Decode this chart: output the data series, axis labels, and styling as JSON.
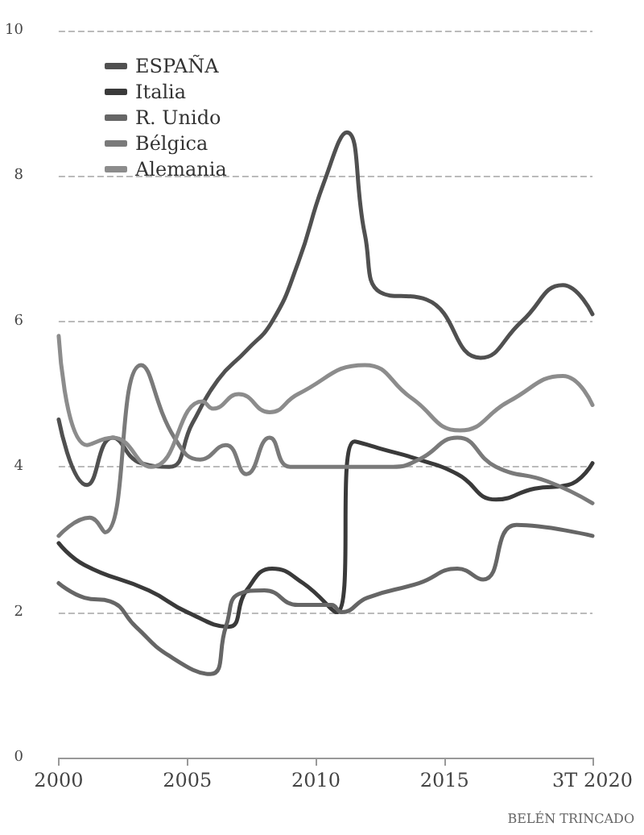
{
  "chart_data": {
    "type": "line",
    "annotations": [
      "BELÉN TRINCADO"
    ],
    "xlim": [
      2000,
      2020.75
    ],
    "xticks": [
      2000,
      2005,
      2010,
      2015,
      {
        "value": 2020.75,
        "label": "3T 2020"
      }
    ],
    "ylim": [
      0,
      10
    ],
    "yticks": [
      0,
      2,
      4,
      6,
      8,
      10
    ],
    "grid": "y",
    "legend": "top left",
    "marker": "none",
    "line_style": "solid",
    "series": [
      {
        "name": "ESPAÑA",
        "color": "#505050",
        "x": [
          2000,
          2001.1,
          2002.1,
          2003.2,
          2004.3,
          2005.2,
          2006.2,
          2007.3,
          2008.3,
          2009.3,
          2010.3,
          2011.2,
          2011.9,
          2012.5,
          2014.3,
          2016.4,
          2018,
          2019.6,
          2020.75
        ],
        "values": [
          4.65,
          3.75,
          4.4,
          4.05,
          4.0,
          4.6,
          5.2,
          5.6,
          6.0,
          6.8,
          7.9,
          8.6,
          7.2,
          6.4,
          6.3,
          5.5,
          6.0,
          6.5,
          6.1
        ]
      },
      {
        "name": "Italia",
        "color": "#3a3a3a",
        "x": [
          2000,
          2001,
          2003.5,
          2005,
          2006.6,
          2007.3,
          2008.3,
          2009.5,
          2010.8,
          2011.5,
          2012.5,
          2014,
          2015.5,
          2017,
          2018.5,
          2019.8,
          2020.75
        ],
        "values": [
          2.95,
          2.65,
          2.3,
          2.0,
          1.8,
          2.3,
          2.6,
          2.4,
          2.0,
          4.35,
          4.25,
          4.1,
          3.9,
          3.55,
          3.7,
          3.75,
          4.05
        ]
      },
      {
        "name": "R. Unido",
        "color": "#666666",
        "x": [
          2000,
          2001,
          2002,
          2003,
          2004.3,
          2005.9,
          2006.5,
          2007,
          2008,
          2009.3,
          2010.6,
          2011,
          2012,
          2014,
          2015.5,
          2016.5,
          2017.8,
          2020.75
        ],
        "values": [
          2.4,
          2.2,
          2.15,
          1.8,
          1.4,
          1.15,
          1.8,
          2.25,
          2.3,
          2.1,
          2.1,
          2.0,
          2.2,
          2.4,
          2.6,
          2.45,
          3.2,
          3.05
        ]
      },
      {
        "name": "Bélgica",
        "color": "#7a7a7a",
        "x": [
          2000,
          2001.2,
          2001.8,
          2003.2,
          2004.5,
          2005.5,
          2006.5,
          2007.3,
          2008.2,
          2009,
          2011,
          2013,
          2014,
          2015.5,
          2017,
          2019,
          2020.75
        ],
        "values": [
          3.05,
          3.3,
          3.1,
          5.4,
          4.4,
          4.1,
          4.3,
          3.9,
          4.4,
          4.0,
          4.0,
          4.0,
          4.1,
          4.4,
          4.0,
          3.8,
          3.5
        ]
      },
      {
        "name": "Alemania",
        "color": "#8c8c8c",
        "x": [
          2000,
          2001.1,
          2002.1,
          2003.6,
          2005.6,
          2006,
          2007,
          2008.2,
          2009.3,
          2011.9,
          2013.7,
          2015.6,
          2017.5,
          2019.6,
          2020.75
        ],
        "values": [
          5.8,
          4.3,
          4.4,
          4.0,
          4.9,
          4.8,
          5.0,
          4.75,
          5.0,
          5.4,
          4.95,
          4.5,
          4.9,
          5.25,
          4.85
        ]
      }
    ]
  }
}
